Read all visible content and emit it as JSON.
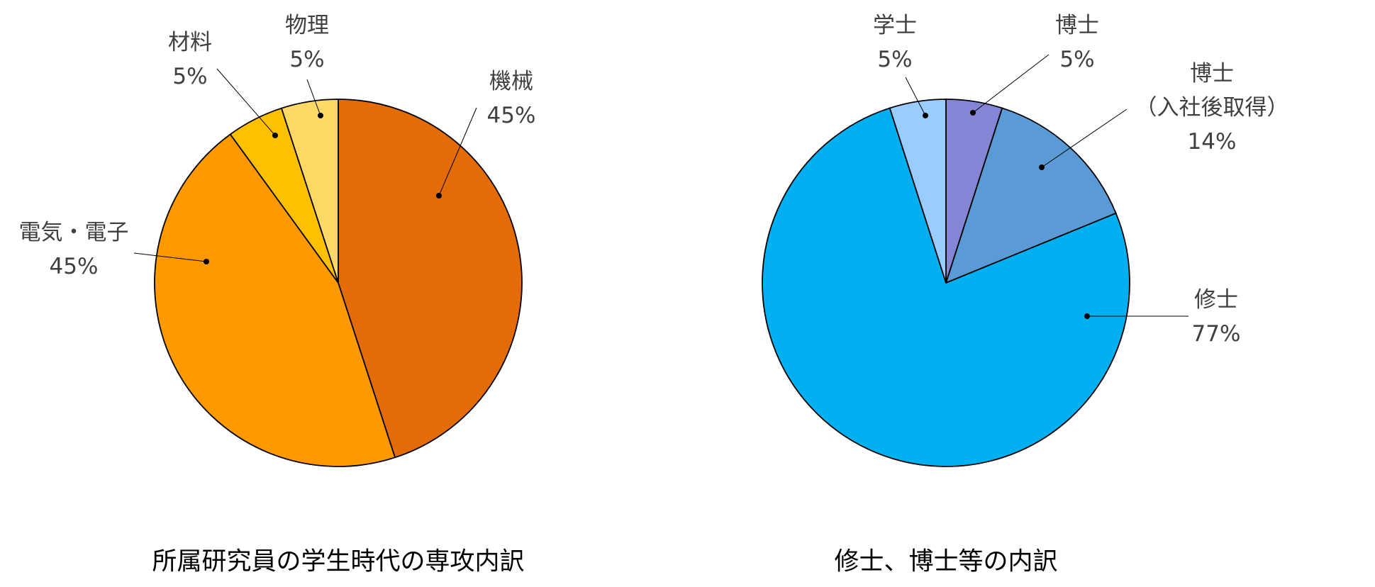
{
  "chart_data": [
    {
      "type": "pie",
      "title": "所属研究員の学生時代の専攻内訳",
      "categories": [
        "機械",
        "電気・電子",
        "材料",
        "物理"
      ],
      "values": [
        45,
        45,
        5,
        5
      ],
      "value_labels": [
        "45%",
        "45%",
        "5%",
        "5%"
      ],
      "colors": [
        "#E36C09",
        "#FF9900",
        "#FFC000",
        "#FFD966"
      ]
    },
    {
      "type": "pie",
      "title": "修士、博士等の内訳",
      "categories": [
        "博士",
        "博士\n（入社後取得）",
        "修士",
        "学士"
      ],
      "values": [
        5,
        14,
        77,
        5
      ],
      "value_labels": [
        "5%",
        "14%",
        "77%",
        "5%"
      ],
      "colors": [
        "#8585D6",
        "#5B9BD5",
        "#00B0F0",
        "#99CCFF"
      ]
    }
  ]
}
